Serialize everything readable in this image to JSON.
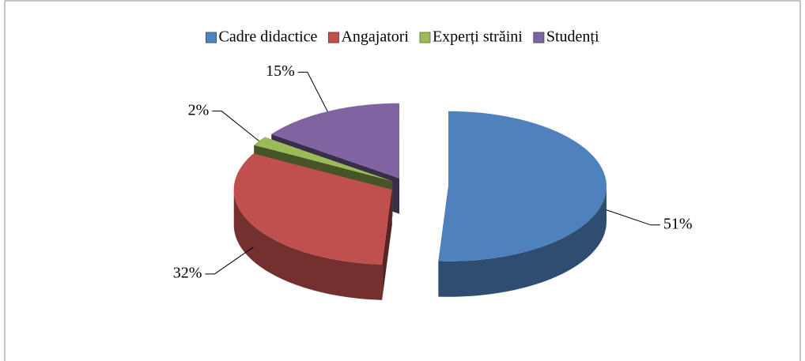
{
  "chart_data": {
    "type": "pie",
    "categories": [
      "Cadre didactice",
      "Angajatori",
      "Experți străini",
      "Studenți"
    ],
    "values": [
      51,
      32,
      2,
      15
    ],
    "value_labels": [
      "51%",
      "32%",
      "2%",
      "15%"
    ],
    "colors": [
      "#4f81bd",
      "#c0504d",
      "#9bbb59",
      "#8064a2"
    ],
    "legend": "top"
  }
}
